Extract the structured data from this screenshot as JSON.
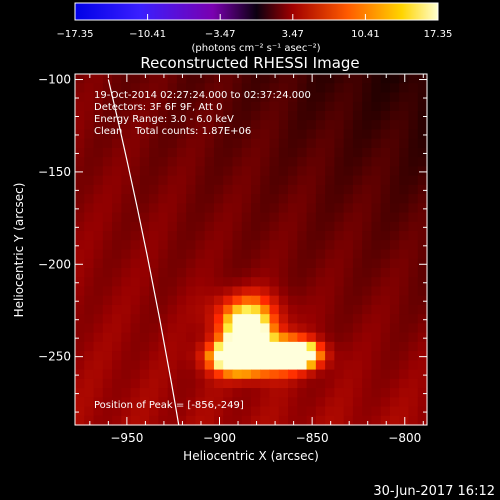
{
  "chart_data": {
    "type": "heatmap",
    "title": "Reconstructed RHESSI Image",
    "xlabel": "Heliocentric X (arcsec)",
    "ylabel": "Heliocentric Y (arcsec)",
    "xlim": [
      -978,
      -788
    ],
    "ylim": [
      -287,
      -97
    ],
    "x_ticks": [
      -950,
      -900,
      -850,
      -800
    ],
    "y_ticks": [
      -250,
      -200,
      -150,
      -100
    ],
    "x_tick_labels": [
      "−950",
      "−900",
      "−850",
      "−800"
    ],
    "y_tick_labels": [
      "−250",
      "−200",
      "−150",
      "−100"
    ],
    "colorbar": {
      "ticks": [
        -17.35,
        -10.41,
        -3.47,
        3.47,
        10.41,
        17.35
      ],
      "tick_labels": [
        "−17.35",
        "−10.41",
        "−3.47",
        "3.47",
        "10.41",
        "17.35"
      ],
      "range": [
        -17.35,
        17.35
      ],
      "units_label": "(photons cm⁻² s⁻¹ asec⁻²)"
    },
    "annotations": [
      "19-Oct-2014 02:27:24.000 to 02:37:24.000",
      "Detectors: 3F 6F 9F, Att 0",
      "Energy Range: 3.0 - 6.0 keV",
      "Clean    Total counts: 1.87E+06"
    ],
    "peak_label": "Position of Peak = [-856,-249]",
    "peak_position": [
      -856,
      -249
    ],
    "sources": [
      {
        "x": -892,
        "y": -250,
        "amplitude": 17.35,
        "width": 14
      },
      {
        "x": -857,
        "y": -249,
        "amplitude": 17.35,
        "width": 12
      },
      {
        "x": -876,
        "y": -249,
        "amplitude": 14.5,
        "width": 16
      },
      {
        "x": -885,
        "y": -235,
        "amplitude": 11.5,
        "width": 14
      },
      {
        "x": -885,
        "y": -225,
        "amplitude": 7.5,
        "width": 18
      }
    ],
    "background_level": 6.5,
    "limb": {
      "from": [
        -960,
        -100
      ],
      "to": [
        -922,
        -287
      ]
    }
  },
  "footer": {
    "date": "30-Jun-2017 16:12"
  }
}
